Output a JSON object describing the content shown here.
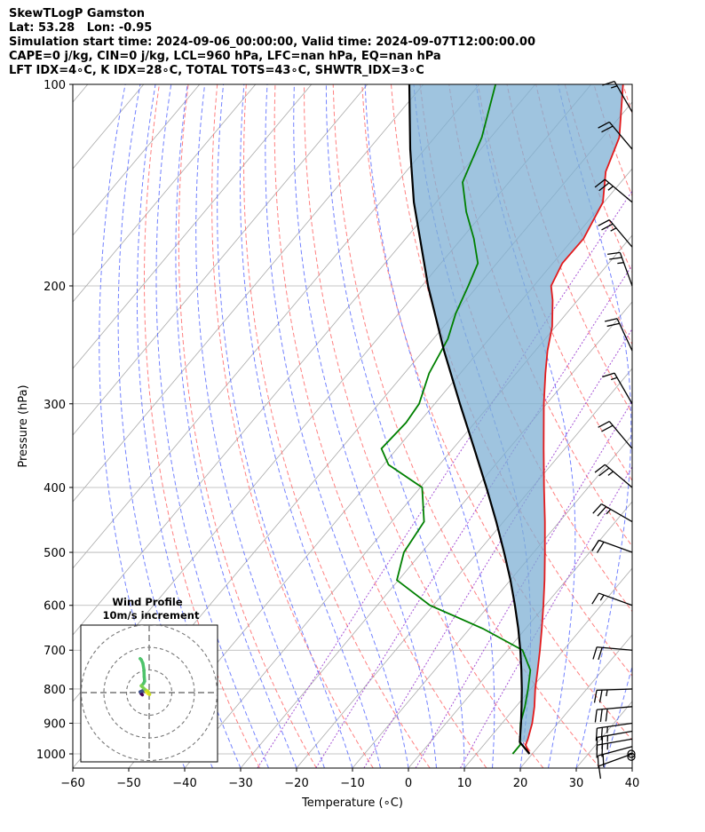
{
  "header": {
    "line1": "SkewTLogP Gamston",
    "line2": "Lat: 53.28   Lon: -0.95",
    "line3": "Simulation start time: 2024-09-06_00:00:00, Valid time: 2024-09-07T12:00:00.00",
    "line4": "CAPE=0 j/kg, CIN=0 j/kg, LCL=960 hPa, LFC=nan hPa, EQ=nan hPa",
    "line5": "LFT IDX=4∘C, K IDX=28∘C, TOTAL TOTS=43∘C, SHWTR_IDX=3∘C"
  },
  "colors": {
    "temperature": "#e31a1c",
    "dewpoint": "#008000",
    "parcel": "#000000",
    "cape_fill": "#7fb0d4",
    "dry_adiabat": "#ff6a6a",
    "moist_adiabat": "#5a6cff",
    "mixing_ratio": "#9c3fd0",
    "isotherm": "#aaaaaa"
  },
  "chart_data": {
    "type": "line",
    "subtype": "skew-T log-P",
    "xlabel": "Temperature (∘C)",
    "ylabel": "Pressure (hPa)",
    "xlim": [
      -60,
      40
    ],
    "ylim": [
      1050,
      100
    ],
    "xticks": [
      -60,
      -50,
      -40,
      -30,
      -20,
      -10,
      0,
      10,
      20,
      30,
      40
    ],
    "yticks": [
      1000,
      900,
      800,
      700,
      600,
      500,
      400,
      300,
      200,
      100
    ],
    "series": [
      {
        "name": "Temperature",
        "points": [
          [
            1000,
            19.5
          ],
          [
            970,
            17.5
          ],
          [
            950,
            17
          ],
          [
            900,
            15.4
          ],
          [
            850,
            13.3
          ],
          [
            800,
            10.8
          ],
          [
            750,
            8.4
          ],
          [
            700,
            5.8
          ],
          [
            650,
            2.9
          ],
          [
            600,
            -0.3
          ],
          [
            550,
            -3.9
          ],
          [
            500,
            -8
          ],
          [
            450,
            -12.6
          ],
          [
            400,
            -17.9
          ],
          [
            350,
            -23.8
          ],
          [
            300,
            -30.5
          ],
          [
            270,
            -34.8
          ],
          [
            250,
            -37.8
          ],
          [
            230,
            -40.6
          ],
          [
            210,
            -44.5
          ],
          [
            200,
            -46.9
          ],
          [
            185,
            -48.3
          ],
          [
            170,
            -48.2
          ],
          [
            150,
            -50.2
          ],
          [
            135,
            -54.3
          ],
          [
            120,
            -57
          ],
          [
            100,
            -64.3
          ]
        ]
      },
      {
        "name": "Dewpoint",
        "points": [
          [
            1000,
            16.5
          ],
          [
            970,
            16.5
          ],
          [
            900,
            13.3
          ],
          [
            850,
            11.6
          ],
          [
            800,
            9.5
          ],
          [
            750,
            7.1
          ],
          [
            700,
            2.7
          ],
          [
            650,
            -7.6
          ],
          [
            600,
            -20.6
          ],
          [
            550,
            -30.3
          ],
          [
            500,
            -33.2
          ],
          [
            450,
            -34.2
          ],
          [
            400,
            -39.7
          ],
          [
            370,
            -49.1
          ],
          [
            350,
            -52.8
          ],
          [
            320,
            -52.3
          ],
          [
            300,
            -52.8
          ],
          [
            270,
            -55.6
          ],
          [
            240,
            -57.4
          ],
          [
            220,
            -59.8
          ],
          [
            200,
            -61.7
          ],
          [
            185,
            -63.4
          ],
          [
            170,
            -67.8
          ],
          [
            155,
            -73.2
          ],
          [
            140,
            -78.3
          ],
          [
            120,
            -81.6
          ],
          [
            100,
            -87.1
          ]
        ]
      },
      {
        "name": "Parcel",
        "points": [
          [
            1000,
            19.5
          ],
          [
            960,
            16
          ],
          [
            900,
            13.4
          ],
          [
            850,
            11
          ],
          [
            800,
            8.4
          ],
          [
            750,
            5.5
          ],
          [
            700,
            2.3
          ],
          [
            650,
            -1.3
          ],
          [
            600,
            -5.4
          ],
          [
            550,
            -10
          ],
          [
            500,
            -15.3
          ],
          [
            450,
            -21.3
          ],
          [
            400,
            -28.2
          ],
          [
            350,
            -36.2
          ],
          [
            300,
            -45.5
          ],
          [
            250,
            -56.3
          ],
          [
            200,
            -68.9
          ],
          [
            150,
            -84
          ],
          [
            125,
            -92.6
          ],
          [
            100,
            -102.5
          ]
        ]
      }
    ],
    "cape_shading": "area between Temperature and Parcel from 960 to 100 hPa",
    "wind_barbs": [
      {
        "p": 1000,
        "speed_kt": 10,
        "dir_deg": 250
      },
      {
        "p": 975,
        "speed_kt": 20,
        "dir_deg": 255
      },
      {
        "p": 950,
        "speed_kt": 25,
        "dir_deg": 260
      },
      {
        "p": 925,
        "speed_kt": 25,
        "dir_deg": 260
      },
      {
        "p": 900,
        "speed_kt": 25,
        "dir_deg": 262
      },
      {
        "p": 850,
        "speed_kt": 30,
        "dir_deg": 265
      },
      {
        "p": 800,
        "speed_kt": 25,
        "dir_deg": 268
      },
      {
        "p": 700,
        "speed_kt": 20,
        "dir_deg": 275
      },
      {
        "p": 600,
        "speed_kt": 15,
        "dir_deg": 290
      },
      {
        "p": 500,
        "speed_kt": 20,
        "dir_deg": 290
      },
      {
        "p": 450,
        "speed_kt": 25,
        "dir_deg": 300
      },
      {
        "p": 400,
        "speed_kt": 25,
        "dir_deg": 310
      },
      {
        "p": 350,
        "speed_kt": 20,
        "dir_deg": 320
      },
      {
        "p": 300,
        "speed_kt": 15,
        "dir_deg": 330
      },
      {
        "p": 250,
        "speed_kt": 20,
        "dir_deg": 335
      },
      {
        "p": 200,
        "speed_kt": 25,
        "dir_deg": 340
      },
      {
        "p": 175,
        "speed_kt": 25,
        "dir_deg": 320
      },
      {
        "p": 150,
        "speed_kt": 25,
        "dir_deg": 310
      },
      {
        "p": 125,
        "speed_kt": 20,
        "dir_deg": 320
      },
      {
        "p": 110,
        "speed_kt": 15,
        "dir_deg": 330
      }
    ],
    "calm_levels_hPa": [
      1010,
      1000
    ],
    "inset": {
      "title": "Wind Profile",
      "subtitle": "10m/s increment",
      "rings_ms": [
        10,
        20,
        30
      ],
      "hodograph": [
        [
          -3,
          -1
        ],
        [
          -3.5,
          -0.5
        ],
        [
          -4,
          0.3
        ],
        [
          -3,
          0.8
        ],
        [
          -1.5,
          0.6
        ],
        [
          -0.5,
          -0.5
        ],
        [
          0.2,
          -0.8
        ],
        [
          -0.5,
          0.5
        ],
        [
          -2,
          1.5
        ],
        [
          -3.5,
          3
        ],
        [
          -2.5,
          4
        ],
        [
          -2,
          5
        ],
        [
          -2.2,
          7
        ],
        [
          -2.3,
          10
        ],
        [
          -2.8,
          13
        ],
        [
          -3.5,
          14.5
        ],
        [
          -4,
          15
        ]
      ]
    }
  }
}
